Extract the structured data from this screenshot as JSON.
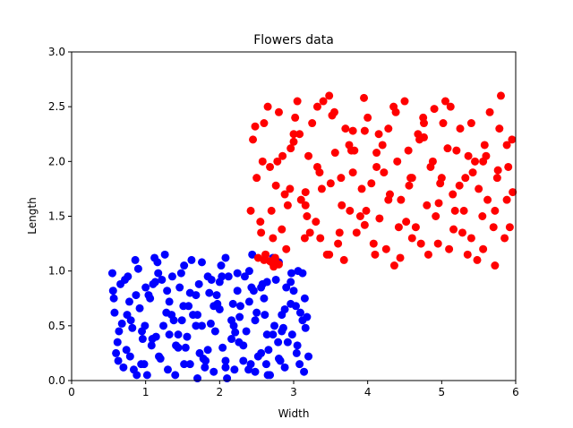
{
  "chart_data": {
    "type": "scatter",
    "title": "Flowers data",
    "xlabel": "Width",
    "ylabel": "Length",
    "xlim": [
      0,
      6
    ],
    "ylim": [
      0,
      3
    ],
    "xticks": [
      "0",
      "1",
      "2",
      "3",
      "4",
      "5",
      "6"
    ],
    "yticks": [
      "0.0",
      "0.5",
      "1.0",
      "1.5",
      "2.0",
      "2.5",
      "3.0"
    ],
    "grid": false,
    "legend": "none",
    "series": [
      {
        "color": "#0000ff",
        "marker": "circle",
        "x": [
          0.55,
          0.62,
          0.7,
          0.78,
          0.86,
          0.95,
          1.02,
          1.1,
          1.18,
          1.26,
          1.35,
          1.44,
          1.52,
          1.6,
          1.68,
          1.76,
          1.84,
          1.92,
          2.0,
          2.08,
          2.16,
          2.24,
          2.32,
          2.4,
          2.48,
          2.56,
          2.64,
          2.72,
          2.8,
          2.88,
          2.96,
          3.05,
          3.12,
          3.18,
          0.58,
          0.66,
          0.74,
          0.82,
          0.9,
          0.98,
          1.06,
          1.14,
          1.22,
          1.3,
          1.38,
          1.46,
          1.54,
          1.62,
          1.7,
          1.78,
          1.86,
          1.94,
          2.02,
          2.1,
          2.18,
          2.26,
          2.34,
          2.42,
          2.5,
          2.58,
          2.66,
          2.74,
          2.82,
          2.9,
          2.98,
          3.06,
          3.14,
          0.6,
          0.68,
          0.76,
          0.84,
          0.92,
          1.0,
          1.08,
          1.16,
          1.24,
          1.32,
          1.4,
          1.48,
          1.56,
          1.64,
          1.72,
          1.8,
          1.88,
          1.96,
          2.04,
          2.12,
          2.2,
          2.28,
          2.36,
          2.44,
          2.52,
          2.6,
          2.68,
          2.76,
          2.84,
          2.92,
          3.0,
          3.08,
          3.16,
          0.64,
          0.72,
          0.8,
          0.88,
          0.96,
          1.04,
          1.12,
          1.2,
          1.28,
          1.36,
          1.44,
          1.52,
          1.6,
          1.68,
          1.76,
          1.84,
          1.92,
          2.0,
          2.08,
          2.16,
          2.24,
          2.32,
          2.4,
          2.48,
          2.56,
          2.64,
          2.72,
          2.8,
          2.88,
          2.96,
          3.04,
          3.12,
          0.56,
          0.75,
          0.94,
          1.13,
          1.32,
          1.51,
          1.7,
          1.89,
          2.08,
          2.27,
          2.46,
          2.65,
          2.84,
          3.03,
          3.2,
          0.57,
          0.79,
          0.99,
          1.17,
          1.41,
          1.58,
          1.81,
          2.03,
          2.21,
          2.39,
          2.61,
          2.79,
          2.97,
          3.15,
          0.63,
          0.87,
          1.09,
          1.29,
          1.49,
          1.73,
          1.97,
          2.19,
          2.43,
          2.63,
          2.86,
          3.09
        ],
        "y": [
          0.98,
          0.35,
          0.12,
          0.72,
          1.1,
          0.45,
          0.05,
          0.88,
          0.22,
          1.15,
          0.6,
          0.3,
          1.05,
          0.15,
          0.78,
          0.5,
          0.95,
          0.08,
          0.65,
          1.12,
          0.38,
          0.82,
          0.18,
          1.0,
          0.55,
          0.25,
          0.9,
          0.42,
          1.08,
          0.12,
          0.7,
          0.32,
          0.98,
          0.58,
          0.62,
          0.88,
          0.28,
          0.48,
          1.02,
          0.15,
          0.75,
          0.4,
          0.92,
          0.1,
          0.55,
          0.85,
          0.3,
          1.1,
          0.6,
          0.2,
          0.8,
          0.45,
          1.05,
          0.02,
          0.7,
          0.35,
          0.95,
          0.15,
          0.62,
          0.88,
          0.28,
          0.5,
          0.18,
          0.85,
          0.42,
          1.0,
          0.08,
          0.25,
          0.52,
          0.95,
          0.1,
          0.66,
          0.85,
          0.32,
          1.08,
          0.5,
          0.72,
          0.05,
          0.98,
          0.4,
          0.6,
          0.88,
          0.12,
          0.52,
          0.78,
          0.3,
          0.95,
          0.1,
          0.68,
          0.45,
          1.15,
          0.22,
          0.75,
          0.05,
          0.92,
          0.6,
          0.35,
          0.82,
          0.15,
          0.48,
          0.45,
          0.92,
          0.55,
          0.05,
          0.38,
          0.78,
          1.12,
          0.2,
          0.62,
          0.95,
          0.42,
          0.15,
          0.8,
          0.5,
          1.08,
          0.28,
          0.68,
          0.9,
          0.12,
          0.55,
          0.98,
          0.32,
          0.72,
          0.08,
          0.85,
          0.42,
          1.12,
          0.2,
          0.65,
          0.9,
          0.25,
          0.55,
          0.82,
          0.6,
          0.15,
          0.9,
          0.42,
          0.68,
          0.02,
          0.92,
          0.18,
          0.58,
          0.82,
          0.05,
          0.45,
          0.68,
          0.22,
          0.75,
          0.22,
          0.5,
          0.98,
          0.32,
          0.68,
          0.18,
          0.95,
          0.44,
          0.1,
          0.6,
          0.35,
          0.98,
          0.75,
          0.18,
          0.78,
          0.38,
          0.82,
          0.55,
          0.25,
          0.7,
          0.5,
          0.85,
          0.15,
          0.48,
          0.62
        ]
      },
      {
        "color": "#ff0000",
        "marker": "circle",
        "x": [
          2.45,
          2.55,
          2.65,
          2.75,
          2.85,
          2.95,
          3.05,
          3.15,
          3.25,
          3.35,
          3.45,
          3.55,
          3.65,
          3.75,
          3.85,
          3.95,
          4.05,
          4.15,
          4.25,
          4.35,
          4.45,
          4.55,
          4.65,
          4.75,
          4.85,
          4.95,
          5.05,
          5.15,
          5.25,
          5.35,
          5.45,
          5.55,
          5.65,
          5.75,
          5.85,
          5.95,
          2.5,
          2.6,
          2.7,
          2.8,
          2.9,
          3.0,
          3.1,
          3.2,
          3.3,
          3.4,
          3.5,
          3.6,
          3.7,
          3.8,
          3.9,
          4.0,
          4.1,
          4.2,
          4.3,
          4.4,
          4.5,
          4.6,
          4.7,
          4.8,
          4.9,
          5.0,
          5.1,
          5.2,
          5.3,
          5.4,
          5.5,
          5.6,
          5.7,
          5.8,
          5.9,
          2.42,
          2.58,
          2.72,
          2.88,
          3.02,
          3.18,
          3.32,
          3.48,
          3.62,
          3.78,
          3.92,
          4.08,
          4.22,
          4.38,
          4.52,
          4.68,
          4.82,
          4.98,
          5.12,
          5.28,
          5.42,
          5.58,
          5.72,
          5.88,
          2.48,
          2.62,
          2.78,
          2.92,
          3.08,
          3.22,
          3.38,
          3.52,
          3.68,
          3.82,
          3.98,
          4.12,
          4.28,
          4.42,
          4.58,
          4.72,
          4.88,
          5.02,
          5.18,
          5.32,
          5.48,
          5.62,
          5.78,
          5.92,
          2.52,
          2.68,
          2.84,
          3.0,
          3.16,
          3.32,
          3.48,
          3.64,
          3.8,
          3.96,
          4.12,
          4.28,
          4.44,
          4.6,
          4.76,
          4.92,
          5.08,
          5.24,
          5.4,
          5.56,
          5.72,
          5.88,
          2.56,
          2.76,
          2.96,
          3.16,
          3.36,
          3.56,
          3.76,
          3.96,
          4.16,
          4.36,
          4.56,
          4.76,
          4.96,
          5.16,
          5.36,
          5.56,
          5.76,
          5.96,
          2.6,
          2.7,
          2.75,
          2.8,
          2.62,
          2.68,
          2.73
        ],
        "y": [
          2.2,
          1.45,
          2.5,
          1.1,
          2.05,
          1.75,
          2.55,
          1.3,
          2.35,
          1.9,
          1.15,
          2.45,
          1.6,
          2.15,
          1.35,
          2.58,
          1.8,
          2.25,
          1.2,
          2.5,
          1.65,
          2.1,
          1.4,
          2.4,
          1.95,
          1.25,
          2.55,
          1.7,
          2.3,
          1.15,
          2.0,
          1.5,
          2.45,
          1.85,
          1.3,
          2.2,
          1.85,
          2.35,
          1.55,
          2.45,
          1.2,
          2.25,
          1.65,
          2.05,
          1.45,
          2.55,
          1.8,
          1.25,
          2.3,
          1.9,
          1.5,
          2.4,
          1.15,
          2.15,
          1.7,
          2.0,
          2.55,
          1.3,
          2.2,
          1.6,
          2.48,
          1.85,
          1.2,
          2.1,
          1.55,
          2.35,
          1.75,
          2.05,
          1.4,
          2.6,
          1.95,
          1.55,
          2.0,
          1.3,
          1.7,
          2.4,
          1.5,
          1.95,
          2.6,
          1.35,
          2.1,
          1.75,
          1.25,
          1.9,
          2.45,
          1.45,
          2.25,
          1.15,
          1.8,
          2.5,
          1.35,
          1.9,
          2.15,
          1.05,
          1.65,
          2.32,
          1.15,
          2.0,
          1.6,
          2.25,
          1.35,
          1.75,
          2.42,
          1.1,
          2.1,
          1.55,
          1.95,
          2.3,
          1.4,
          1.85,
          1.25,
          2.0,
          2.35,
          1.55,
          1.85,
          1.1,
          1.65,
          2.3,
          1.4,
          1.12,
          1.95,
          1.38,
          2.18,
          1.72,
          2.5,
          1.15,
          1.85,
          2.28,
          1.42,
          2.08,
          1.65,
          1.12,
          1.85,
          2.35,
          1.5,
          2.12,
          1.78,
          1.3,
          2.0,
          1.55,
          2.15,
          1.35,
          1.78,
          2.12,
          1.6,
          1.3,
          2.08,
          1.55,
          2.28,
          1.48,
          1.05,
          1.78,
          2.22,
          1.62,
          1.38,
          2.05,
          1.2,
          1.92,
          1.72,
          1.1,
          1.08,
          1.12,
          1.06,
          1.15,
          1.09,
          1.04
        ]
      }
    ]
  }
}
